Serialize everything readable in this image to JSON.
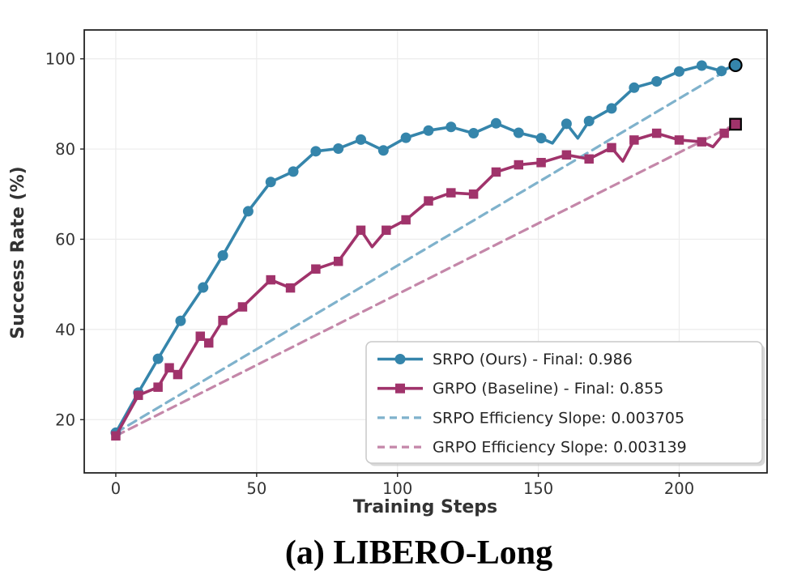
{
  "caption": "(a) LIBERO-Long",
  "chart_data": {
    "type": "line",
    "title": "",
    "xlabel": "Training Steps",
    "ylabel": "Success Rate (%)",
    "x_ticks": [
      0,
      50,
      100,
      150,
      200
    ],
    "y_ticks": [
      20,
      40,
      60,
      80,
      100
    ],
    "xlim": [
      -11.2,
      231.2
    ],
    "ylim": [
      8.2,
      106.4
    ],
    "grid": true,
    "legend_position": "lower right",
    "colors": {
      "grid": "#ececec",
      "frame": "#222222",
      "tick_text": "#333333",
      "axis_label_text": "#333333",
      "legend_border": "#c9c9c9",
      "legend_text": "#262626",
      "legend_shadow": "#aaaaaa",
      "final_marker_edge": "#000000",
      "srpo": "#3585ab",
      "grpo": "#a0336b",
      "srpo_dashed": "#7fb2cc",
      "grpo_dashed": "#c487a9"
    },
    "series": [
      {
        "name": "SRPO (Ours) - Final: 0.986",
        "color_key": "srpo",
        "style": "solid",
        "marker": "circle",
        "final_highlight": true,
        "final_value": 0.986,
        "points": [
          [
            0,
            17.1,
            1
          ],
          [
            8,
            26.0,
            1
          ],
          [
            15,
            33.5,
            1
          ],
          [
            23,
            41.9,
            1
          ],
          [
            31,
            49.3,
            1
          ],
          [
            38,
            56.4,
            1
          ],
          [
            47,
            66.2,
            1
          ],
          [
            55,
            72.7,
            1
          ],
          [
            63,
            75.0,
            1
          ],
          [
            71,
            79.5,
            1
          ],
          [
            79,
            80.1,
            1
          ],
          [
            87,
            82.1,
            1
          ],
          [
            95,
            79.7,
            1
          ],
          [
            103,
            82.5,
            1
          ],
          [
            111,
            84.1,
            1
          ],
          [
            119,
            84.9,
            1
          ],
          [
            127,
            83.5,
            1
          ],
          [
            135,
            85.7,
            1
          ],
          [
            143,
            83.6,
            1
          ],
          [
            151,
            82.4,
            1
          ],
          [
            155,
            81.3,
            0
          ],
          [
            160,
            85.6,
            1
          ],
          [
            164,
            82.4,
            0
          ],
          [
            168,
            86.2,
            1
          ],
          [
            176,
            89.0,
            1
          ],
          [
            184,
            93.6,
            1
          ],
          [
            192,
            95.0,
            1
          ],
          [
            200,
            97.2,
            1
          ],
          [
            208,
            98.5,
            1
          ],
          [
            215,
            97.3,
            1
          ],
          [
            220,
            98.6,
            1
          ]
        ]
      },
      {
        "name": "GRPO (Baseline) - Final: 0.855",
        "color_key": "grpo",
        "style": "solid",
        "marker": "square",
        "final_highlight": true,
        "final_value": 0.855,
        "points": [
          [
            0,
            16.4,
            1
          ],
          [
            8,
            25.4,
            1
          ],
          [
            15,
            27.2,
            1
          ],
          [
            19,
            31.5,
            1
          ],
          [
            22,
            30.0,
            1
          ],
          [
            30,
            38.5,
            1
          ],
          [
            33,
            37.0,
            1
          ],
          [
            38,
            42.0,
            1
          ],
          [
            45,
            45.0,
            1
          ],
          [
            55,
            51.0,
            1
          ],
          [
            62,
            49.2,
            1
          ],
          [
            71,
            53.4,
            1
          ],
          [
            79,
            55.1,
            1
          ],
          [
            87,
            62.0,
            1
          ],
          [
            91,
            58.3,
            0
          ],
          [
            96,
            62.0,
            1
          ],
          [
            103,
            64.3,
            1
          ],
          [
            111,
            68.5,
            1
          ],
          [
            119,
            70.3,
            1
          ],
          [
            127,
            70.0,
            1
          ],
          [
            135,
            74.9,
            1
          ],
          [
            143,
            76.5,
            1
          ],
          [
            151,
            77.0,
            1
          ],
          [
            160,
            78.7,
            1
          ],
          [
            168,
            77.8,
            1
          ],
          [
            176,
            80.3,
            1
          ],
          [
            180,
            77.3,
            0
          ],
          [
            184,
            82.0,
            1
          ],
          [
            192,
            83.5,
            1
          ],
          [
            200,
            82.0,
            1
          ],
          [
            208,
            81.6,
            1
          ],
          [
            212,
            80.5,
            0
          ],
          [
            216,
            83.5,
            1
          ],
          [
            220,
            85.5,
            1
          ]
        ]
      },
      {
        "name": "SRPO Efficiency Slope: 0.003705",
        "color_key": "srpo_dashed",
        "style": "dashed",
        "marker": "none",
        "slope": 0.003705,
        "points": [
          [
            0,
            17.1,
            0
          ],
          [
            220,
            98.6,
            0
          ]
        ]
      },
      {
        "name": "GRPO Efficiency Slope: 0.003139",
        "color_key": "grpo_dashed",
        "style": "dashed",
        "marker": "none",
        "slope": 0.003139,
        "points": [
          [
            0,
            16.4,
            0
          ],
          [
            220,
            85.5,
            0
          ]
        ]
      }
    ]
  }
}
